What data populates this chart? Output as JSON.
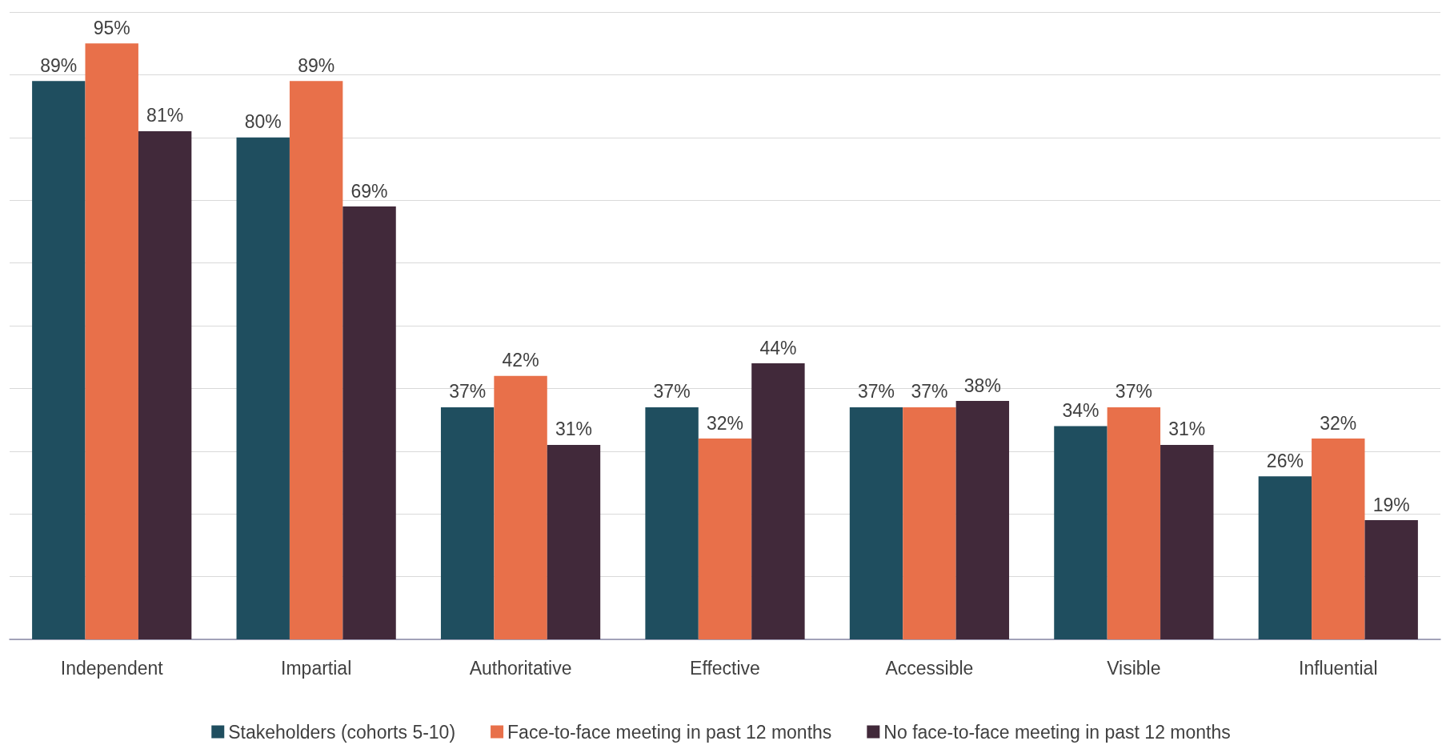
{
  "chart_data": {
    "type": "bar",
    "categories": [
      "Independent",
      "Impartial",
      "Authoritative",
      "Effective",
      "Accessible",
      "Visible",
      "Influential"
    ],
    "series": [
      {
        "name": "Stakeholders (cohorts 5-10)",
        "color": "#1f4e5f",
        "values": [
          89,
          80,
          37,
          37,
          37,
          34,
          26
        ],
        "value_labels": [
          "89%",
          "80%",
          "37%",
          "37%",
          "37%",
          "34%",
          "26%"
        ]
      },
      {
        "name": "Face-to-face meeting in past 12 months",
        "color": "#e8704a",
        "values": [
          95,
          89,
          42,
          32,
          37,
          37,
          32
        ],
        "value_labels": [
          "95%",
          "89%",
          "42%",
          "32%",
          "37%",
          "37%",
          "32%"
        ]
      },
      {
        "name": "No face-to-face meeting in past 12 months",
        "color": "#41293a",
        "values": [
          81,
          69,
          31,
          44,
          38,
          31,
          19
        ],
        "value_labels": [
          "81%",
          "69%",
          "31%",
          "44%",
          "38%",
          "31%",
          "19%"
        ]
      }
    ],
    "ylim": [
      0,
      100
    ],
    "yticks": [
      {
        "value": 0,
        "label": null
      },
      {
        "value": 10,
        "label": null
      },
      {
        "value": 20,
        "label": null
      },
      {
        "value": 30,
        "label": null
      },
      {
        "value": 40,
        "label": null
      },
      {
        "value": 50,
        "label": null
      },
      {
        "value": 60,
        "label": null
      },
      {
        "value": 70,
        "label": null
      },
      {
        "value": 80,
        "label": null
      },
      {
        "value": 90,
        "label": null
      },
      {
        "value": 100,
        "label": null
      }
    ],
    "grid": "y",
    "legend": "bottom",
    "tick_labels": "x"
  }
}
